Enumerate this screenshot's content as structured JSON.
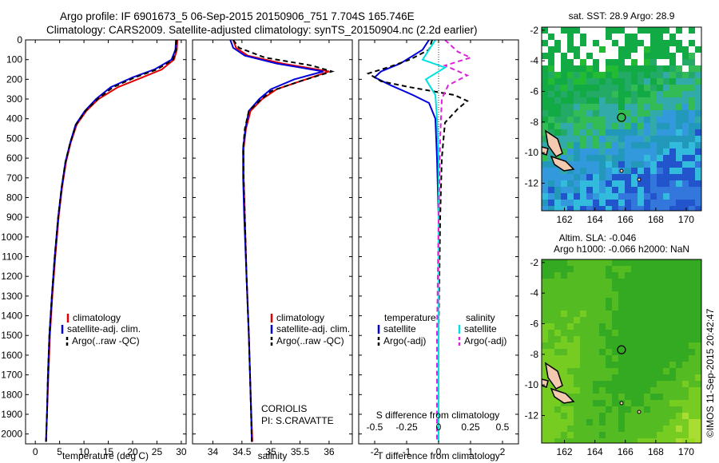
{
  "header": {
    "line1": "Argo profile: IF 6901673_5 06-Sep-2015 20150906_751 7.704S 165.746E",
    "line2": "Climatology: CARS2009. Satellite-adjusted climatology: synTS_20150904.nc (2.2d earlier)"
  },
  "colors": {
    "climatology": "#e00000",
    "satellite": "#0000dd",
    "argo": "#000000",
    "sal_satellite": "#00e0e0",
    "sal_argo": "#dd22dd",
    "land": "#f3c9b0",
    "sst_background": "#22aa33",
    "sla_background": "#44cc22"
  },
  "chart_data": [
    {
      "type": "line",
      "panel": "temperature",
      "xlabel": "temperature (deg C)",
      "xlim": [
        -2,
        31
      ],
      "xticks": [
        "0",
        "5",
        "10",
        "15",
        "20",
        "25",
        "30"
      ],
      "xtick_values": [
        0,
        5,
        10,
        15,
        20,
        25,
        30
      ],
      "ylim": [
        2050,
        0
      ],
      "yticks": [
        "0",
        "100",
        "200",
        "300",
        "400",
        "500",
        "600",
        "700",
        "800",
        "900",
        "1000",
        "1100",
        "1200",
        "1300",
        "1400",
        "1500",
        "1600",
        "1700",
        "1800",
        "1900",
        "2000"
      ],
      "ytick_values": [
        0,
        100,
        200,
        300,
        400,
        500,
        600,
        700,
        800,
        900,
        1000,
        1100,
        1200,
        1300,
        1400,
        1500,
        1600,
        1700,
        1800,
        1900,
        2000
      ],
      "legend": [
        "climatology",
        "satellite-adj. clim.",
        "Argo(..raw -QC)"
      ],
      "series": [
        {
          "name": "climatology",
          "color_key": "climatology",
          "dash": false,
          "points": [
            [
              29.2,
              0
            ],
            [
              29.1,
              50
            ],
            [
              28.5,
              100
            ],
            [
              26,
              150
            ],
            [
              22,
              190
            ],
            [
              17,
              240
            ],
            [
              13,
              300
            ],
            [
              10.5,
              360
            ],
            [
              8.5,
              430
            ],
            [
              7.3,
              520
            ],
            [
              6.3,
              620
            ],
            [
              5.5,
              750
            ],
            [
              4.8,
              900
            ],
            [
              4.1,
              1100
            ],
            [
              3.5,
              1300
            ],
            [
              3.0,
              1500
            ],
            [
              2.7,
              1700
            ],
            [
              2.4,
              1900
            ],
            [
              2.2,
              2040
            ]
          ]
        },
        {
          "name": "satellite-adj. clim.",
          "color_key": "satellite",
          "dash": false,
          "points": [
            [
              28.9,
              0
            ],
            [
              28.8,
              50
            ],
            [
              28.0,
              100
            ],
            [
              24.5,
              150
            ],
            [
              20,
              190
            ],
            [
              15.5,
              240
            ],
            [
              12.5,
              300
            ],
            [
              10.2,
              360
            ],
            [
              8.3,
              430
            ],
            [
              7.2,
              520
            ],
            [
              6.2,
              620
            ],
            [
              5.4,
              750
            ],
            [
              4.7,
              900
            ],
            [
              4.0,
              1100
            ],
            [
              3.4,
              1300
            ],
            [
              2.9,
              1500
            ],
            [
              2.6,
              1700
            ],
            [
              2.4,
              1900
            ],
            [
              2.2,
              2040
            ]
          ]
        },
        {
          "name": "Argo(..raw -QC)",
          "color_key": "argo",
          "dash": true,
          "points": [
            [
              29.0,
              0
            ],
            [
              28.9,
              50
            ],
            [
              28.3,
              100
            ],
            [
              25,
              150
            ],
            [
              20.5,
              190
            ],
            [
              16,
              240
            ],
            [
              12.8,
              300
            ],
            [
              10.3,
              360
            ],
            [
              8.4,
              430
            ],
            [
              7.2,
              520
            ],
            [
              6.2,
              620
            ],
            [
              5.4,
              750
            ],
            [
              4.7,
              900
            ],
            [
              4.0,
              1100
            ],
            [
              3.4,
              1300
            ],
            [
              2.9,
              1500
            ],
            [
              2.6,
              1700
            ],
            [
              2.4,
              1900
            ],
            [
              2.2,
              2040
            ]
          ]
        }
      ]
    },
    {
      "type": "line",
      "panel": "salinity",
      "xlabel": "salinity",
      "xlim": [
        33.65,
        36.4
      ],
      "xticks": [
        "34",
        "34.5",
        "35",
        "35.5",
        "36"
      ],
      "xtick_values": [
        34,
        34.5,
        35,
        35.5,
        36
      ],
      "ylim": [
        2050,
        0
      ],
      "legend": [
        "climatology",
        "satellite-adj. clim.",
        "Argo(..raw -QC)"
      ],
      "annotation": [
        "CORIOLIS",
        "PI: S.CRAVATTE"
      ],
      "series": [
        {
          "name": "climatology",
          "color_key": "climatology",
          "dash": false,
          "points": [
            [
              34.35,
              0
            ],
            [
              34.4,
              40
            ],
            [
              34.6,
              80
            ],
            [
              35.2,
              120
            ],
            [
              36.0,
              160
            ],
            [
              35.6,
              200
            ],
            [
              35.1,
              250
            ],
            [
              34.85,
              300
            ],
            [
              34.65,
              360
            ],
            [
              34.57,
              450
            ],
            [
              34.53,
              550
            ],
            [
              34.53,
              700
            ],
            [
              34.55,
              900
            ],
            [
              34.58,
              1200
            ],
            [
              34.62,
              1500
            ],
            [
              34.65,
              1800
            ],
            [
              34.68,
              2040
            ]
          ]
        },
        {
          "name": "satellite-adj. clim.",
          "color_key": "satellite",
          "dash": false,
          "points": [
            [
              34.3,
              0
            ],
            [
              34.35,
              40
            ],
            [
              34.55,
              80
            ],
            [
              35.1,
              120
            ],
            [
              35.9,
              160
            ],
            [
              35.4,
              200
            ],
            [
              35.0,
              250
            ],
            [
              34.8,
              300
            ],
            [
              34.62,
              360
            ],
            [
              34.56,
              450
            ],
            [
              34.52,
              550
            ],
            [
              34.52,
              700
            ],
            [
              34.54,
              900
            ],
            [
              34.58,
              1200
            ],
            [
              34.62,
              1500
            ],
            [
              34.65,
              1800
            ],
            [
              34.67,
              2040
            ]
          ]
        },
        {
          "name": "Argo(..raw -QC)",
          "color_key": "argo",
          "dash": true,
          "points": [
            [
              34.35,
              0
            ],
            [
              34.45,
              40
            ],
            [
              34.9,
              90
            ],
            [
              35.7,
              130
            ],
            [
              36.05,
              160
            ],
            [
              35.5,
              210
            ],
            [
              35.0,
              260
            ],
            [
              34.8,
              310
            ],
            [
              34.62,
              360
            ],
            [
              34.55,
              450
            ],
            [
              34.52,
              550
            ],
            [
              34.53,
              700
            ],
            [
              34.55,
              900
            ],
            [
              34.58,
              1200
            ],
            [
              34.62,
              1500
            ],
            [
              34.65,
              1800
            ],
            [
              34.67,
              2040
            ]
          ]
        }
      ]
    },
    {
      "type": "line",
      "panel": "difference",
      "xlabel": "T difference from climatology",
      "xlabel_top": "S difference from climatology",
      "xlim": [
        -2.5,
        2.5
      ],
      "xticks": [
        "-2",
        "-1",
        "0",
        "1",
        "2"
      ],
      "xtick_values": [
        -2,
        -1,
        0,
        1,
        2
      ],
      "xticks_top": [
        "-0.5",
        "-0.25",
        "0",
        "0.25",
        "0.5"
      ],
      "xtick_top_values": [
        -0.5,
        -0.25,
        0,
        0.25,
        0.5
      ],
      "ylim": [
        2050,
        0
      ],
      "legend_temperature_title": "temperature",
      "legend_salinity_title": "salinity",
      "legend": [
        "satellite",
        "Argo(-adj)",
        "satellite",
        "Argo(-adj)"
      ],
      "series": [
        {
          "name": "satellite",
          "group": "temperature",
          "color_key": "satellite",
          "dash": false,
          "points": [
            [
              -0.3,
              0
            ],
            [
              -0.5,
              50
            ],
            [
              -1.2,
              120
            ],
            [
              -1.8,
              160
            ],
            [
              -2.0,
              190
            ],
            [
              -1.5,
              230
            ],
            [
              -0.8,
              280
            ],
            [
              -0.3,
              320
            ],
            [
              -0.1,
              400
            ],
            [
              -0.05,
              600
            ],
            [
              0,
              900
            ],
            [
              0,
              1500
            ],
            [
              0,
              2040
            ]
          ]
        },
        {
          "name": "Argo(-adj)",
          "group": "temperature",
          "color_key": "argo",
          "dash": true,
          "points": [
            [
              -0.2,
              0
            ],
            [
              -0.3,
              50
            ],
            [
              -0.9,
              100
            ],
            [
              -1.6,
              140
            ],
            [
              -2.2,
              170
            ],
            [
              -1.8,
              210
            ],
            [
              -0.9,
              240
            ],
            [
              0.5,
              280
            ],
            [
              0.9,
              310
            ],
            [
              0.6,
              350
            ],
            [
              0.2,
              420
            ],
            [
              0.1,
              600
            ],
            [
              0.05,
              900
            ],
            [
              0,
              1500
            ],
            [
              0,
              2040
            ]
          ]
        },
        {
          "name": "satellite",
          "group": "salinity",
          "color_key": "sal_satellite",
          "dash": false,
          "points": [
            [
              -0.1,
              0
            ],
            [
              -0.3,
              50
            ],
            [
              -0.5,
              100
            ],
            [
              0.2,
              140
            ],
            [
              -0.4,
              200
            ],
            [
              -0.1,
              280
            ],
            [
              -0.05,
              400
            ],
            [
              0,
              600
            ],
            [
              0,
              2040
            ]
          ]
        },
        {
          "name": "Argo(-adj)",
          "group": "salinity",
          "color_key": "sal_argo",
          "dash": true,
          "points": [
            [
              0.2,
              0
            ],
            [
              0.6,
              60
            ],
            [
              1.0,
              90
            ],
            [
              0.2,
              130
            ],
            [
              0.9,
              180
            ],
            [
              0.3,
              230
            ],
            [
              0.1,
              300
            ],
            [
              0.05,
              500
            ],
            [
              0,
              900
            ],
            [
              -0.05,
              1500
            ],
            [
              -0.05,
              2040
            ]
          ]
        }
      ]
    },
    {
      "type": "heatmap",
      "panel": "sst_map",
      "title": "sat. SST: 28.9 Argo: 28.9",
      "xlim": [
        160.5,
        171
      ],
      "ylim": [
        -13.8,
        -1.8
      ],
      "xticks": [
        "162",
        "164",
        "166",
        "168",
        "170"
      ],
      "xtick_values": [
        162,
        164,
        166,
        168,
        170
      ],
      "yticks": [
        "-2",
        "-4",
        "-6",
        "-8",
        "-10",
        "-12"
      ],
      "ytick_values": [
        -2,
        -4,
        -6,
        -8,
        -10,
        -12
      ],
      "argo_position": [
        165.746,
        -7.704
      ]
    },
    {
      "type": "heatmap",
      "panel": "sla_map",
      "title": [
        "Altim. SLA: -0.046",
        "Argo h1000: -0.066 h2000: NaN"
      ],
      "xlim": [
        160.5,
        171
      ],
      "ylim": [
        -13.8,
        -1.8
      ],
      "xticks": [
        "162",
        "164",
        "166",
        "168",
        "170"
      ],
      "xtick_values": [
        162,
        164,
        166,
        168,
        170
      ],
      "yticks": [
        "-2",
        "-4",
        "-6",
        "-8",
        "-10",
        "-12"
      ],
      "ytick_values": [
        -2,
        -4,
        -6,
        -8,
        -10,
        -12
      ],
      "argo_position": [
        165.746,
        -7.704
      ]
    }
  ],
  "footer_stamp": "©IMOS 11-Sep-2015 20:42:47"
}
